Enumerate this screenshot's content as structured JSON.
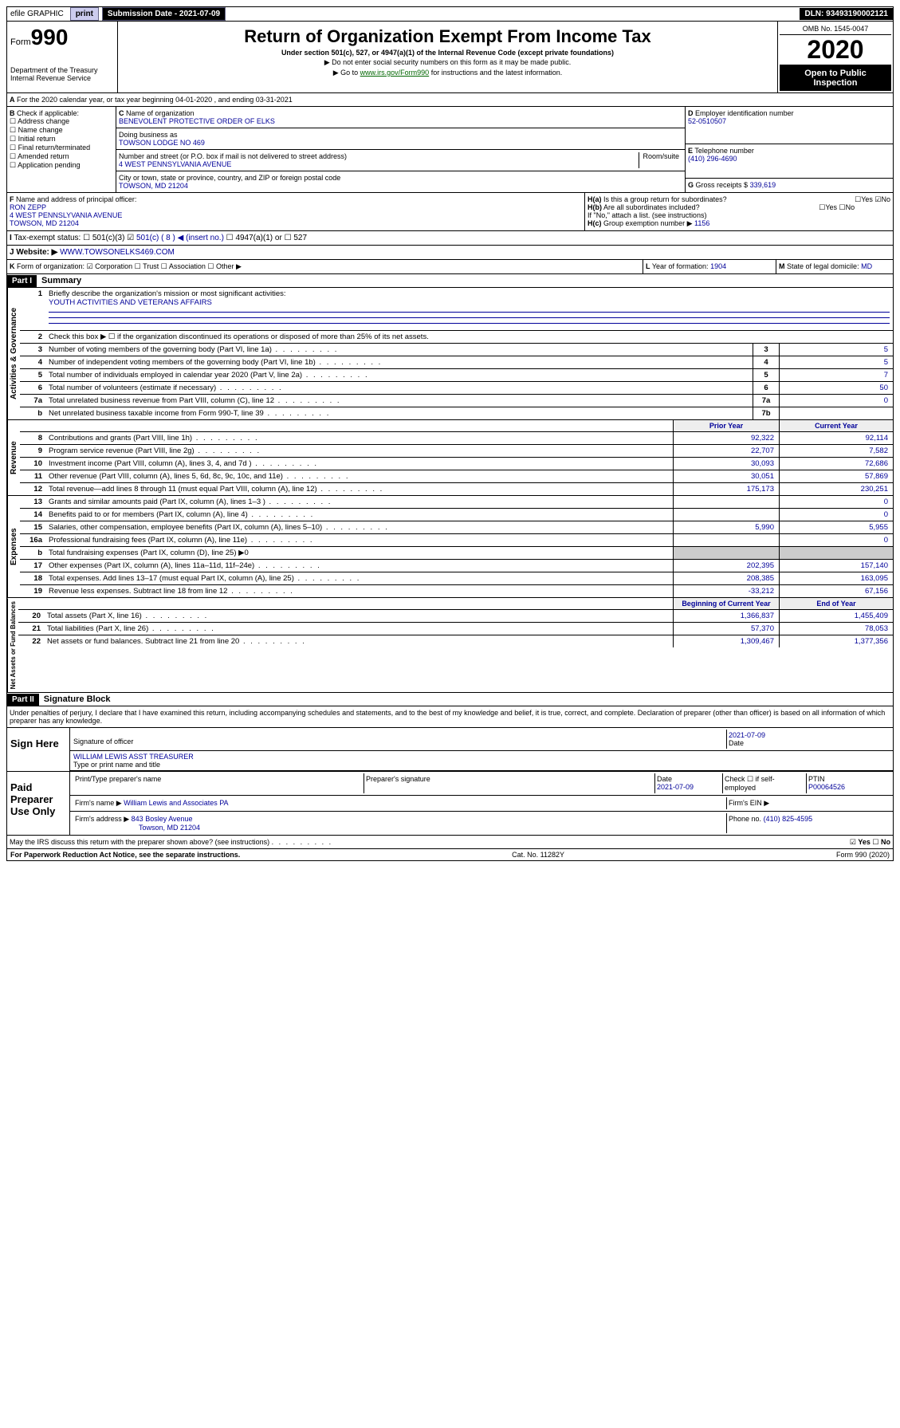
{
  "topbar": {
    "efile": "efile GRAPHIC",
    "print": "print",
    "subdate_lbl": "Submission Date - 2021-07-09",
    "dln": "DLN: 93493190002121"
  },
  "header": {
    "form": "Form",
    "form_no": "990",
    "title": "Return of Organization Exempt From Income Tax",
    "subtitle": "Under section 501(c), 527, or 4947(a)(1) of the Internal Revenue Code (except private foundations)",
    "note1": "▶ Do not enter social security numbers on this form as it may be made public.",
    "note2": "▶ Go to www.irs.gov/Form990 for instructions and the latest information.",
    "dept": "Department of the Treasury",
    "irs": "Internal Revenue Service",
    "omb": "OMB No. 1545-0047",
    "year": "2020",
    "public": "Open to Public Inspection"
  },
  "A": {
    "text": "For the 2020 calendar year, or tax year beginning 04-01-2020     , and ending 03-31-2021"
  },
  "B": {
    "label": "Check if applicable:",
    "opts": [
      "Address change",
      "Name change",
      "Initial return",
      "Final return/terminated",
      "Amended return",
      "Application pending"
    ]
  },
  "C": {
    "name_lbl": "Name of organization",
    "name": "BENEVOLENT PROTECTIVE ORDER OF ELKS",
    "dba_lbl": "Doing business as",
    "dba": "TOWSON LODGE NO 469",
    "addr_lbl": "Number and street (or P.O. box if mail is not delivered to street address)",
    "addr": "4 WEST PENNSYLVANIA AVENUE",
    "room_lbl": "Room/suite",
    "city_lbl": "City or town, state or province, country, and ZIP or foreign postal code",
    "city": "TOWSON, MD  21204"
  },
  "D": {
    "label": "Employer identification number",
    "val": "52-0510507"
  },
  "E": {
    "label": "Telephone number",
    "val": "(410) 296-4690"
  },
  "G": {
    "label": "Gross receipts $",
    "val": "339,619"
  },
  "F": {
    "label": "Name and address of principal officer:",
    "name": "RON ZEPP",
    "addr": "4 WEST PENNSLYVANIA AVENUE",
    "city": "TOWSON, MD  21204"
  },
  "H": {
    "a": "Is this a group return for subordinates?",
    "b": "Are all subordinates included?",
    "note": "If \"No,\" attach a list. (see instructions)",
    "c": "Group exemption number ▶",
    "c_val": "1156",
    "yes": "Yes",
    "no": "No"
  },
  "tax": {
    "label": "Tax-exempt status:",
    "opts": [
      "501(c)(3)",
      "501(c) ( 8 ) ◀ (insert no.)",
      "4947(a)(1) or",
      "527"
    ]
  },
  "J": {
    "label": "Website: ▶",
    "val": "WWW.TOWSONELKS469.COM"
  },
  "K": {
    "label": "Form of organization:",
    "opts": [
      "Corporation",
      "Trust",
      "Association",
      "Other ▶"
    ]
  },
  "L": {
    "label": "Year of formation:",
    "val": "1904"
  },
  "M": {
    "label": "State of legal domicile:",
    "val": "MD"
  },
  "part1": {
    "hdr": "Part I",
    "title": "Summary"
  },
  "summary": {
    "l1": "Briefly describe the organization's mission or most significant activities:",
    "l1v": "YOUTH ACTIVITIES AND VETERANS AFFAIRS",
    "l2": "Check this box ▶ ☐  if the organization discontinued its operations or disposed of more than 25% of its net assets.",
    "rows": [
      {
        "n": "3",
        "t": "Number of voting members of the governing body (Part VI, line 1a)",
        "b": "3",
        "v": "5"
      },
      {
        "n": "4",
        "t": "Number of independent voting members of the governing body (Part VI, line 1b)",
        "b": "4",
        "v": "5"
      },
      {
        "n": "5",
        "t": "Total number of individuals employed in calendar year 2020 (Part V, line 2a)",
        "b": "5",
        "v": "7"
      },
      {
        "n": "6",
        "t": "Total number of volunteers (estimate if necessary)",
        "b": "6",
        "v": "50"
      },
      {
        "n": "7a",
        "t": "Total unrelated business revenue from Part VIII, column (C), line 12",
        "b": "7a",
        "v": "0"
      },
      {
        "n": "b",
        "t": "Net unrelated business taxable income from Form 990-T, line 39",
        "b": "7b",
        "v": ""
      }
    ],
    "py": "Prior Year",
    "cy": "Current Year",
    "rev": [
      {
        "n": "8",
        "t": "Contributions and grants (Part VIII, line 1h)",
        "p": "92,322",
        "c": "92,114"
      },
      {
        "n": "9",
        "t": "Program service revenue (Part VIII, line 2g)",
        "p": "22,707",
        "c": "7,582"
      },
      {
        "n": "10",
        "t": "Investment income (Part VIII, column (A), lines 3, 4, and 7d )",
        "p": "30,093",
        "c": "72,686"
      },
      {
        "n": "11",
        "t": "Other revenue (Part VIII, column (A), lines 5, 6d, 8c, 9c, 10c, and 11e)",
        "p": "30,051",
        "c": "57,869"
      },
      {
        "n": "12",
        "t": "Total revenue—add lines 8 through 11 (must equal Part VIII, column (A), line 12)",
        "p": "175,173",
        "c": "230,251"
      }
    ],
    "exp": [
      {
        "n": "13",
        "t": "Grants and similar amounts paid (Part IX, column (A), lines 1–3 )",
        "p": "",
        "c": "0"
      },
      {
        "n": "14",
        "t": "Benefits paid to or for members (Part IX, column (A), line 4)",
        "p": "",
        "c": "0"
      },
      {
        "n": "15",
        "t": "Salaries, other compensation, employee benefits (Part IX, column (A), lines 5–10)",
        "p": "5,990",
        "c": "5,955"
      },
      {
        "n": "16a",
        "t": "Professional fundraising fees (Part IX, column (A), line 11e)",
        "p": "",
        "c": "0"
      },
      {
        "n": "b",
        "t": "Total fundraising expenses (Part IX, column (D), line 25) ▶0",
        "p": "—",
        "c": "—"
      },
      {
        "n": "17",
        "t": "Other expenses (Part IX, column (A), lines 11a–11d, 11f–24e)",
        "p": "202,395",
        "c": "157,140"
      },
      {
        "n": "18",
        "t": "Total expenses. Add lines 13–17 (must equal Part IX, column (A), line 25)",
        "p": "208,385",
        "c": "163,095"
      },
      {
        "n": "19",
        "t": "Revenue less expenses. Subtract line 18 from line 12",
        "p": "-33,212",
        "c": "67,156"
      }
    ],
    "bcy": "Beginning of Current Year",
    "eoy": "End of Year",
    "net": [
      {
        "n": "20",
        "t": "Total assets (Part X, line 16)",
        "p": "1,366,837",
        "c": "1,455,409"
      },
      {
        "n": "21",
        "t": "Total liabilities (Part X, line 26)",
        "p": "57,370",
        "c": "78,053"
      },
      {
        "n": "22",
        "t": "Net assets or fund balances. Subtract line 21 from line 20",
        "p": "1,309,467",
        "c": "1,377,356"
      }
    ],
    "vlabels": {
      "ag": "Activities & Governance",
      "rv": "Revenue",
      "ex": "Expenses",
      "na": "Net Assets or Fund Balances"
    }
  },
  "part2": {
    "hdr": "Part II",
    "title": "Signature Block",
    "decl": "Under penalties of perjury, I declare that I have examined this return, including accompanying schedules and statements, and to the best of my knowledge and belief, it is true, correct, and complete. Declaration of preparer (other than officer) is based on all information of which preparer has any knowledge.",
    "sign": "Sign Here",
    "sig_of": "Signature of officer",
    "date": "2021-07-09",
    "date_lbl": "Date",
    "name": "WILLIAM LEWIS ASST TREASURER",
    "name_lbl": "Type or print name and title",
    "paid": "Paid Preparer Use Only",
    "prep_name_lbl": "Print/Type preparer's name",
    "prep_sig_lbl": "Preparer's signature",
    "prep_date_lbl": "Date",
    "prep_date": "2021-07-09",
    "check_lbl": "Check ☐ if self-employed",
    "ptin_lbl": "PTIN",
    "ptin": "P00064526",
    "firm_lbl": "Firm's name  ▶",
    "firm": "William Lewis and Associates PA",
    "ein_lbl": "Firm's EIN ▶",
    "faddr_lbl": "Firm's address ▶",
    "faddr": "843 Bosley Avenue",
    "fcity": "Towson, MD  21204",
    "fphone_lbl": "Phone no.",
    "fphone": "(410) 825-4595",
    "irs_q": "May the IRS discuss this return with the preparer shown above? (see instructions)",
    "yes": "Yes",
    "no": "No"
  },
  "footer": {
    "pra": "For Paperwork Reduction Act Notice, see the separate instructions.",
    "cat": "Cat. No. 11282Y",
    "form": "Form 990 (2020)"
  }
}
